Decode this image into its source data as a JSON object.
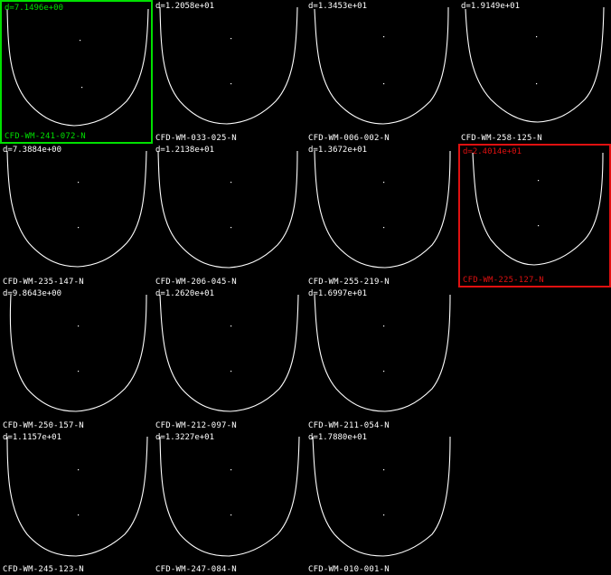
{
  "colors": {
    "background": "#000000",
    "curve": "#ffffff",
    "text": "#ffffff",
    "selected": "#00e000",
    "reference": "#e01010"
  },
  "cells": [
    {
      "row": 0,
      "col": 0,
      "distance": "d=7.1496e+00",
      "label": "CFD-WM-241-072-N",
      "state": "selected"
    },
    {
      "row": 0,
      "col": 1,
      "distance": "d=1.2058e+01",
      "label": "CFD-WM-033-025-N",
      "state": "normal"
    },
    {
      "row": 0,
      "col": 2,
      "distance": "d=1.3453e+01",
      "label": "CFD-WM-006-002-N",
      "state": "normal"
    },
    {
      "row": 0,
      "col": 3,
      "distance": "d=1.9149e+01",
      "label": "CFD-WM-258-125-N",
      "state": "normal"
    },
    {
      "row": 1,
      "col": 0,
      "distance": "d=7.3884e+00",
      "label": "CFD-WM-235-147-N",
      "state": "normal"
    },
    {
      "row": 1,
      "col": 1,
      "distance": "d=1.2138e+01",
      "label": "CFD-WM-206-045-N",
      "state": "normal"
    },
    {
      "row": 1,
      "col": 2,
      "distance": "d=1.3672e+01",
      "label": "CFD-WM-255-219-N",
      "state": "normal"
    },
    {
      "row": 1,
      "col": 3,
      "distance": "d=2.4014e+01",
      "label": "CFD-WM-225-127-N",
      "state": "reference"
    },
    {
      "row": 2,
      "col": 0,
      "distance": "d=9.8643e+00",
      "label": "CFD-WM-250-157-N",
      "state": "normal"
    },
    {
      "row": 2,
      "col": 1,
      "distance": "d=1.2620e+01",
      "label": "CFD-WM-212-097-N",
      "state": "normal"
    },
    {
      "row": 2,
      "col": 2,
      "distance": "d=1.6997e+01",
      "label": "CFD-WM-211-054-N",
      "state": "normal"
    },
    {
      "row": 3,
      "col": 0,
      "distance": "d=1.1157e+01",
      "label": "CFD-WM-245-123-N",
      "state": "normal"
    },
    {
      "row": 3,
      "col": 1,
      "distance": "d=1.3227e+01",
      "label": "CFD-WM-247-084-N",
      "state": "normal"
    },
    {
      "row": 3,
      "col": 2,
      "distance": "d=1.7880e+01",
      "label": "CFD-WM-010-001-N",
      "state": "normal"
    }
  ]
}
